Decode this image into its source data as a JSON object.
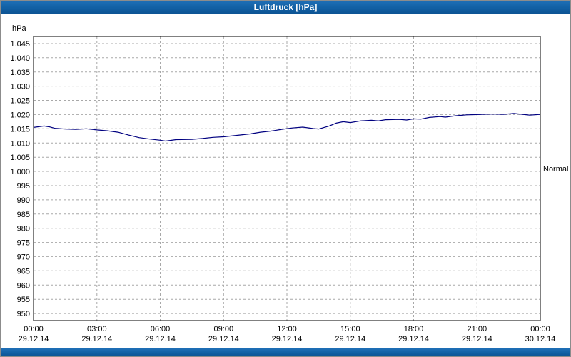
{
  "title_bar": {
    "title": "Luftdruck [hPa]",
    "color": "#1260a4"
  },
  "chart_data": {
    "type": "line",
    "title": "Luftdruck [hPa]",
    "xlabel": "",
    "ylabel": "hPa",
    "ylim": [
      947.5,
      1047.5
    ],
    "xlim": [
      0,
      24
    ],
    "grid": "dashed",
    "legend_position": "none",
    "y_ticks": [
      1045,
      1040,
      1035,
      1030,
      1025,
      1020,
      1015,
      1010,
      1005,
      1000,
      995,
      990,
      985,
      980,
      975,
      970,
      965,
      960,
      955,
      950
    ],
    "y_tick_labels": [
      "1.045",
      "1.040",
      "1.035",
      "1.030",
      "1.025",
      "1.020",
      "1.015",
      "1.010",
      "1.005",
      "1.000",
      "995",
      "990",
      "985",
      "980",
      "975",
      "970",
      "965",
      "960",
      "955",
      "950"
    ],
    "x_ticks": [
      0,
      3,
      6,
      9,
      12,
      15,
      18,
      21,
      24
    ],
    "x_tick_times": [
      "00:00",
      "03:00",
      "06:00",
      "09:00",
      "12:00",
      "15:00",
      "18:00",
      "21:00",
      "00:00"
    ],
    "x_tick_dates": [
      "29.12.14",
      "29.12.14",
      "29.12.14",
      "29.12.14",
      "29.12.14",
      "29.12.14",
      "29.12.14",
      "29.12.14",
      "30.12.14"
    ],
    "annotation": {
      "label": "Normal",
      "value": 1001
    },
    "colors": {
      "line": "#000080",
      "grid": "#a8a8a8",
      "frame": "#000000",
      "text": "#000000"
    },
    "series": [
      {
        "name": "Luftdruck",
        "color": "#000080",
        "x": [
          0,
          0.5,
          0.75,
          1,
          1.5,
          2,
          2.5,
          3,
          3.5,
          4,
          4.5,
          5,
          5.5,
          6,
          6.25,
          6.75,
          7.5,
          8,
          8.5,
          9,
          9.75,
          10.25,
          10.75,
          11.25,
          11.75,
          12.25,
          12.75,
          13.25,
          13.5,
          14,
          14.33,
          14.67,
          15,
          15.5,
          16,
          16.33,
          16.67,
          17.33,
          17.67,
          18,
          18.33,
          18.75,
          19.25,
          19.5,
          20,
          20.5,
          21,
          21.75,
          22.25,
          22.75,
          23.25,
          23.5,
          24
        ],
        "y": [
          1015.5,
          1016.0,
          1015.7,
          1015.2,
          1014.9,
          1014.8,
          1015.0,
          1014.6,
          1014.3,
          1013.8,
          1012.8,
          1011.9,
          1011.4,
          1011.0,
          1010.7,
          1011.2,
          1011.3,
          1011.6,
          1012.0,
          1012.2,
          1012.8,
          1013.2,
          1013.8,
          1014.2,
          1014.8,
          1015.3,
          1015.6,
          1015.1,
          1014.9,
          1016.0,
          1017.0,
          1017.5,
          1017.2,
          1017.8,
          1018.0,
          1017.8,
          1018.2,
          1018.3,
          1018.1,
          1018.5,
          1018.4,
          1019.0,
          1019.3,
          1019.1,
          1019.6,
          1019.9,
          1020.0,
          1020.2,
          1020.1,
          1020.4,
          1020.0,
          1019.8,
          1020.1
        ]
      }
    ]
  }
}
